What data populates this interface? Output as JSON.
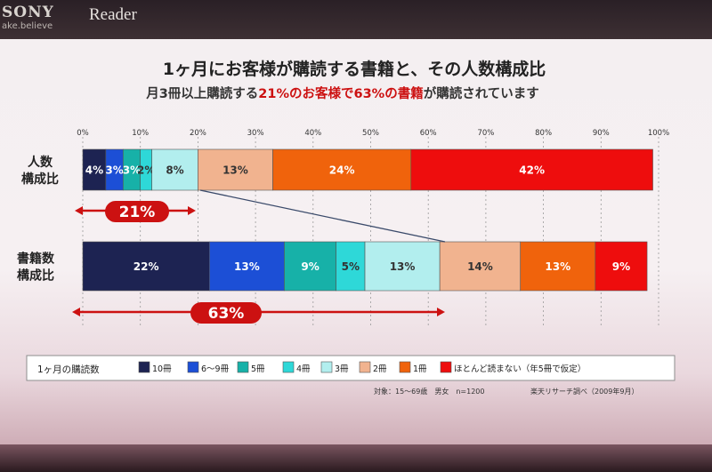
{
  "brand": {
    "company": "SONY",
    "tagline": "ake.believe",
    "product": "Reader"
  },
  "title": "1ヶ月にお客様が購読する書籍と、その人数構成比",
  "subtitle": {
    "part1": "月3冊以上購読する",
    "part2": "21%のお客様で63%の書籍",
    "part3": "が購読されています"
  },
  "colors": {
    "accent": "#cc1111"
  },
  "chart_data": {
    "type": "bar",
    "orientation": "horizontal",
    "stacked": true,
    "xlim": [
      0,
      100
    ],
    "ticks": [
      "0%",
      "10%",
      "20%",
      "30%",
      "40%",
      "50%",
      "60%",
      "70%",
      "80%",
      "90%",
      "100%"
    ],
    "categories": [
      "人数\n構成比",
      "書籍数\n構成比"
    ],
    "series": [
      {
        "name": "10冊",
        "color": "#1d2352",
        "values": [
          4,
          22
        ],
        "labels": [
          "4%",
          "22%"
        ]
      },
      {
        "name": "6～9冊",
        "color": "#1c4fd6",
        "values": [
          3,
          13
        ],
        "labels": [
          "3%",
          "13%"
        ]
      },
      {
        "name": "5冊",
        "color": "#17b1a8",
        "values": [
          3,
          9
        ],
        "labels": [
          "3%",
          "9%"
        ]
      },
      {
        "name": "4冊",
        "color": "#2ed8d8",
        "values": [
          2,
          5
        ],
        "labels": [
          "2%",
          "5%"
        ]
      },
      {
        "name": "3冊",
        "color": "#b2eeee",
        "values": [
          8,
          13
        ],
        "labels": [
          "8%",
          "13%"
        ]
      },
      {
        "name": "2冊",
        "color": "#f1b38f",
        "values": [
          13,
          14
        ],
        "labels": [
          "13%",
          "14%"
        ]
      },
      {
        "name": "1冊",
        "color": "#f0630c",
        "values": [
          24,
          13
        ],
        "labels": [
          "24%",
          "13%"
        ]
      },
      {
        "name": "ほとんど読まない（年5冊で仮定）",
        "color": "#ee0d0d",
        "values": [
          42,
          9
        ],
        "labels": [
          "42%",
          "9%"
        ]
      }
    ],
    "annotations": [
      "21%",
      "63%"
    ],
    "legend_title": "1ヶ月の購読数",
    "legend_position": "bottom",
    "grid": "vertical-dashed"
  },
  "footnote": {
    "sample": "対象：15～69歳　男女　n=1200",
    "source": "楽天リサーチ調べ（2009年9月）"
  }
}
